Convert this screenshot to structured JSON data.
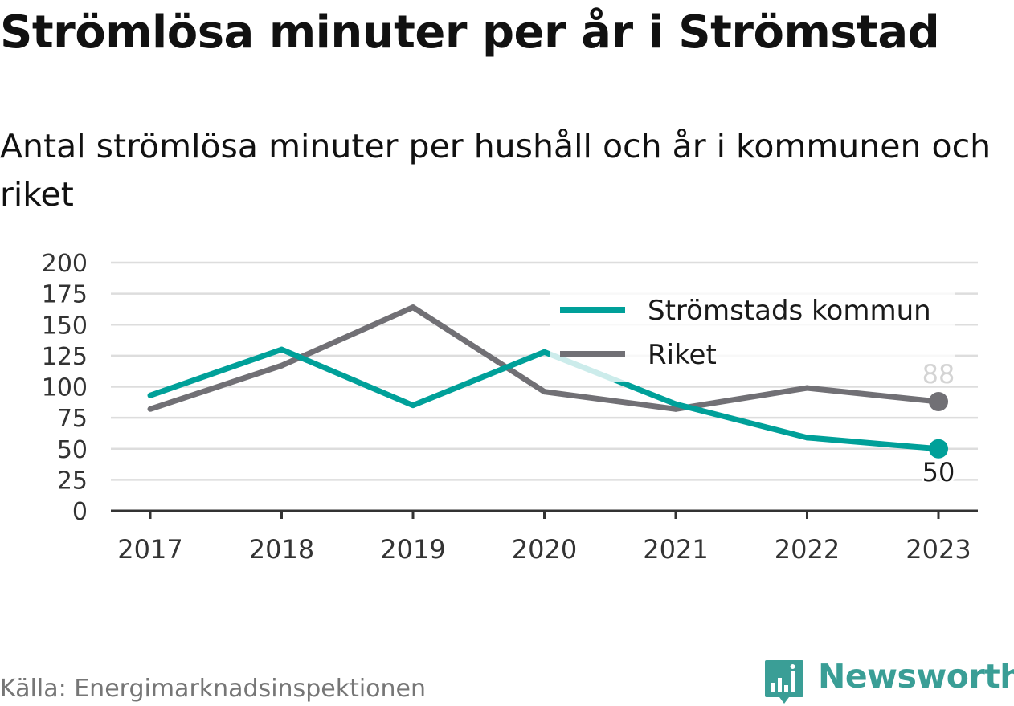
{
  "title": "Strömlösa minuter per år i Strömstad",
  "subtitle": "Antal strömlösa minuter per hushåll och år i kommunen och riket",
  "source": "Källa: Energimarknadsinspektionen",
  "logo_text": "Newsworthy",
  "colors": {
    "stromstad": "#00a099",
    "riket": "#717075",
    "grid": "#dddddd",
    "axis": "#333333",
    "logo": "#3a9e96"
  },
  "chart_data": {
    "type": "line",
    "x": [
      "2017",
      "2018",
      "2019",
      "2020",
      "2021",
      "2022",
      "2023"
    ],
    "series": [
      {
        "name": "Strömstads kommun",
        "values": [
          93,
          130,
          85,
          128,
          86,
          59,
          50
        ],
        "end_label": "50"
      },
      {
        "name": "Riket",
        "values": [
          82,
          117,
          164,
          96,
          82,
          99,
          88
        ],
        "end_label": "88"
      }
    ],
    "yticks": [
      "0",
      "25",
      "50",
      "75",
      "100",
      "125",
      "150",
      "175",
      "200"
    ],
    "ylim": [
      0,
      200
    ],
    "grid": true,
    "legend_position": "top-right"
  }
}
